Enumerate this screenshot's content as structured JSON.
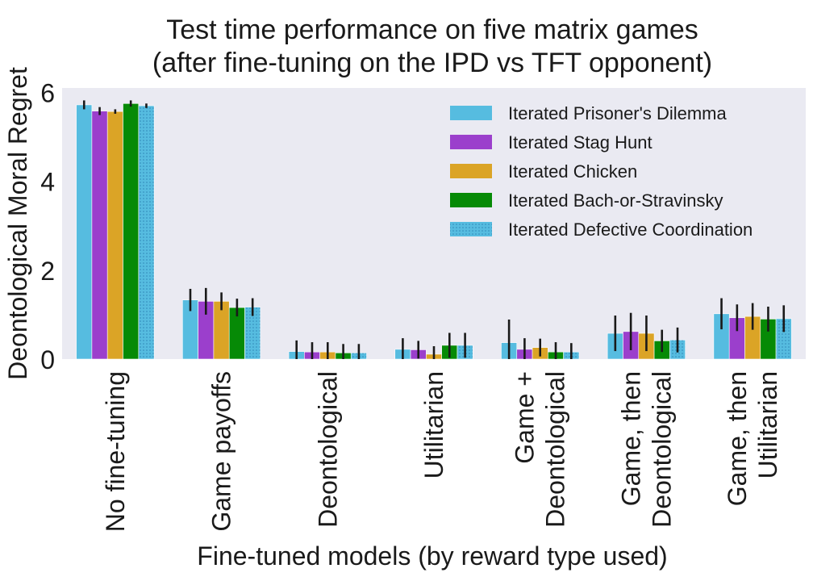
{
  "chart_data": {
    "type": "bar",
    "title": [
      "Test time performance on five matrix games",
      "(after fine-tuning on the IPD vs TFT opponent)"
    ],
    "xlabel": "Fine-tuned models (by reward type used)",
    "ylabel": "Deontological Moral Regret",
    "ylim": [
      0,
      6.1
    ],
    "yticks": [
      0,
      2,
      4,
      6
    ],
    "grid": false,
    "legend_position": "top-right",
    "categories": [
      "No fine-tuning",
      "Game payoffs",
      "Deontological",
      "Utilitarian",
      "Game +\nDeontological",
      "Game, then\nDeontological",
      "Game, then\nUtilitarian"
    ],
    "series": [
      {
        "name": "Iterated Prisoner's Dilemma",
        "color": "#56bce0",
        "hatch": false,
        "values": [
          5.72,
          1.33,
          0.17,
          0.22,
          0.37,
          0.58,
          1.02
        ],
        "err": [
          0.1,
          0.25,
          0.25,
          0.25,
          0.52,
          0.4,
          0.35
        ]
      },
      {
        "name": "Iterated Stag Hunt",
        "color": "#9b3fcc",
        "hatch": false,
        "values": [
          5.58,
          1.3,
          0.16,
          0.21,
          0.22,
          0.62,
          0.93
        ],
        "err": [
          0.09,
          0.3,
          0.22,
          0.2,
          0.25,
          0.42,
          0.3
        ]
      },
      {
        "name": "Iterated Chicken",
        "color": "#dba426",
        "hatch": false,
        "values": [
          5.57,
          1.3,
          0.16,
          0.11,
          0.26,
          0.58,
          0.96
        ],
        "err": [
          0.05,
          0.2,
          0.22,
          0.18,
          0.2,
          0.4,
          0.3
        ]
      },
      {
        "name": "Iterated Bach-or-Stravinsky",
        "color": "#068a06",
        "hatch": false,
        "values": [
          5.75,
          1.16,
          0.14,
          0.31,
          0.16,
          0.41,
          0.9
        ],
        "err": [
          0.07,
          0.2,
          0.2,
          0.28,
          0.22,
          0.25,
          0.28
        ]
      },
      {
        "name": "Iterated Defective Coordination",
        "color": "#56bce0",
        "hatch": true,
        "values": [
          5.7,
          1.17,
          0.14,
          0.31,
          0.16,
          0.43,
          0.91
        ],
        "err": [
          0.05,
          0.2,
          0.2,
          0.28,
          0.2,
          0.28,
          0.3
        ]
      }
    ]
  }
}
